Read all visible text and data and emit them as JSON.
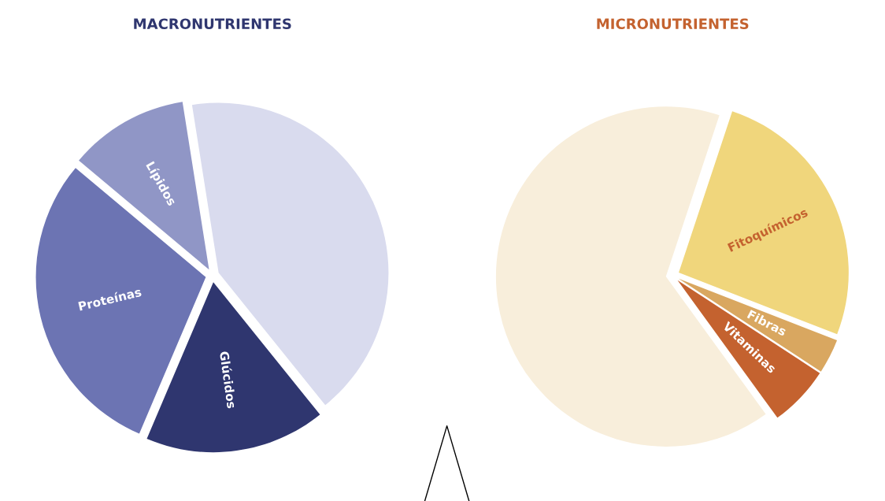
{
  "chart_data": [
    {
      "type": "pie",
      "title": "MACRONUTRIENTES",
      "categories": [
        "Lípidos",
        "Proteínas",
        "Glúcidos",
        null
      ],
      "values": [
        11.4,
        29.7,
        17.2,
        41.7
      ],
      "colors": [
        "#9096c6",
        "#6c74b3",
        "#2f366f",
        "#d9dbee"
      ]
    },
    {
      "type": "pie",
      "title": "MICRONUTRIENTES",
      "categories": [
        "Vitaminas",
        "Fibras",
        "Fitoquímicos",
        null
      ],
      "values": [
        5.8,
        3.3,
        25.8,
        65.1
      ],
      "colors": [
        "#c4622f",
        "#d9a760",
        "#f0d67c",
        "#f8eedb"
      ]
    }
  ]
}
